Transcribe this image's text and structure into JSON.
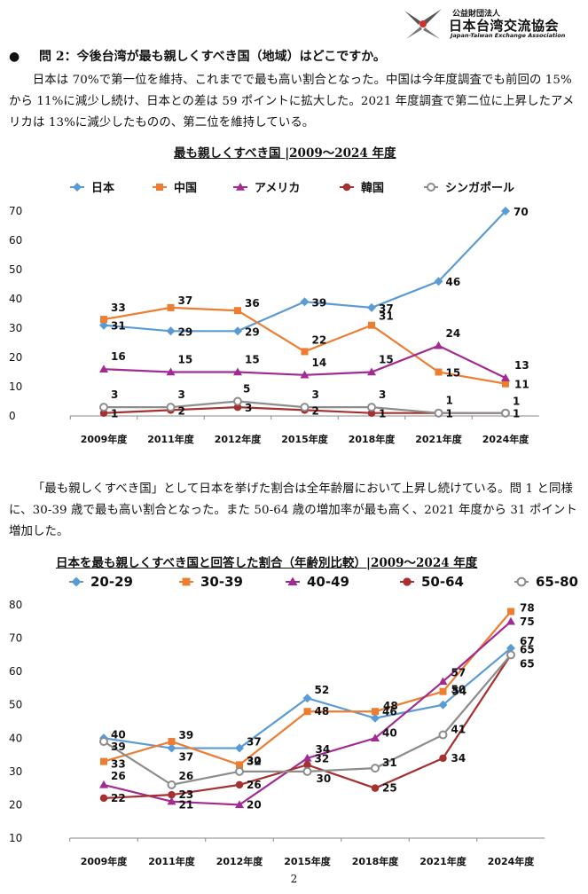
{
  "header": {
    "org_line1": "公益財団法人",
    "org_name": "日本台湾交流協会",
    "org_en": "Japan-Taiwan Exchange Association"
  },
  "question": {
    "bullet": "●",
    "text": "問 2：今後台湾が最も親しくすべき国（地域）はどこですか。"
  },
  "paragraph1": "日本は 70%で第一位を維持、これまでで最も高い割合となった。中国は今年度調査でも前回の 15%から 11%に減少し続け、日本との差は 59 ポイントに拡大した。2021 年度調査で第二位に上昇したアメリカは 13%に減少したものの、第二位を維持している。",
  "paragraph2": "「最も親しくすべき国」として日本を挙げた割合は全年齢層において上昇し続けている。問 1 と同様に、30-39 歳で最も高い割合となった。また 50-64 歳の増加率が最も高く、2021 年度から 31 ポイント増加した。",
  "page_number": "2",
  "chart_data": [
    {
      "type": "line",
      "title": "最も親しくすべき国 |2009～2024 年度",
      "categories": [
        "2009年度",
        "2011年度",
        "2012年度",
        "2015年度",
        "2018年度",
        "2021年度",
        "2024年度"
      ],
      "ylim": [
        0,
        70
      ],
      "yticks": [
        "0",
        "10",
        "20",
        "30",
        "40",
        "50",
        "60",
        "70"
      ],
      "legend_position": "top",
      "grid": false,
      "series": [
        {
          "name": "日本",
          "marker": "diamond",
          "color": "#5B9BD5",
          "values": [
            31,
            29,
            29,
            39,
            37,
            46,
            70
          ]
        },
        {
          "name": "中国",
          "marker": "square",
          "color": "#ED7D31",
          "values": [
            33,
            37,
            36,
            22,
            31,
            15,
            11
          ]
        },
        {
          "name": "アメリカ",
          "marker": "triangle",
          "color": "#A02B93",
          "values": [
            16,
            15,
            15,
            14,
            15,
            24,
            13
          ]
        },
        {
          "name": "韓国",
          "marker": "circle",
          "color": "#A5302F",
          "values": [
            1,
            2,
            3,
            2,
            1,
            1,
            1
          ]
        },
        {
          "name": "シンガポール",
          "marker": "open-circle",
          "color": "#8C8C8C",
          "values": [
            3,
            3,
            5,
            3,
            3,
            1,
            1
          ]
        }
      ]
    },
    {
      "type": "line",
      "title": "日本を最も親しくすべき国と回答した割合（年齢別比較）|2009～2024 年度",
      "categories": [
        "2009年度",
        "2011年度",
        "2012年度",
        "2015年度",
        "2018年度",
        "2021年度",
        "2024年度"
      ],
      "ylim": [
        10,
        80
      ],
      "yticks": [
        "10",
        "20",
        "30",
        "40",
        "50",
        "60",
        "70",
        "80"
      ],
      "legend_position": "top",
      "grid": false,
      "series": [
        {
          "name": "20-29",
          "marker": "diamond",
          "color": "#5B9BD5",
          "values": [
            40,
            37,
            37,
            52,
            46,
            50,
            67
          ]
        },
        {
          "name": "30-39",
          "marker": "square",
          "color": "#ED7D31",
          "values": [
            33,
            39,
            32,
            48,
            48,
            54,
            78
          ]
        },
        {
          "name": "40-49",
          "marker": "triangle",
          "color": "#A02B93",
          "values": [
            26,
            21,
            20,
            34,
            40,
            57,
            75
          ]
        },
        {
          "name": "50-64",
          "marker": "circle",
          "color": "#A5302F",
          "values": [
            22,
            23,
            26,
            32,
            25,
            34,
            65
          ]
        },
        {
          "name": "65-80",
          "marker": "open-circle",
          "color": "#8C8C8C",
          "values": [
            39,
            26,
            30,
            30,
            31,
            41,
            65
          ]
        }
      ]
    }
  ]
}
